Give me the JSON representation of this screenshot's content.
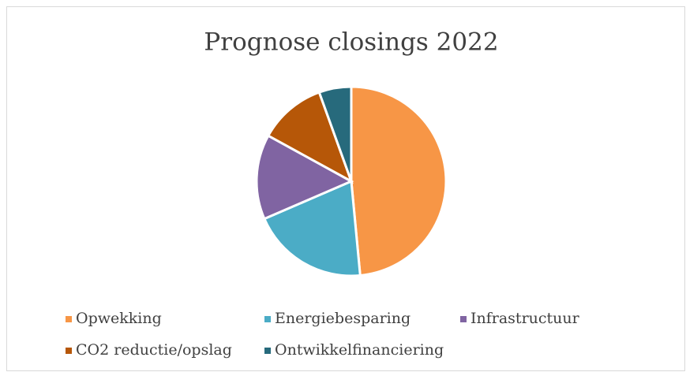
{
  "chart_data": {
    "type": "pie",
    "title": "Prognose closings 2022",
    "categories": [
      "Opwekking",
      "Energiebesparing",
      "Infrastructuur",
      "CO2 reductie/opslag",
      "Ontwikkelfinanciering"
    ],
    "values": [
      48.5,
      20,
      14.5,
      11.5,
      5.5
    ],
    "colors": [
      "#f79646",
      "#4bacc6",
      "#8064a2",
      "#b65708",
      "#276a7c"
    ],
    "legend": "bottom"
  }
}
